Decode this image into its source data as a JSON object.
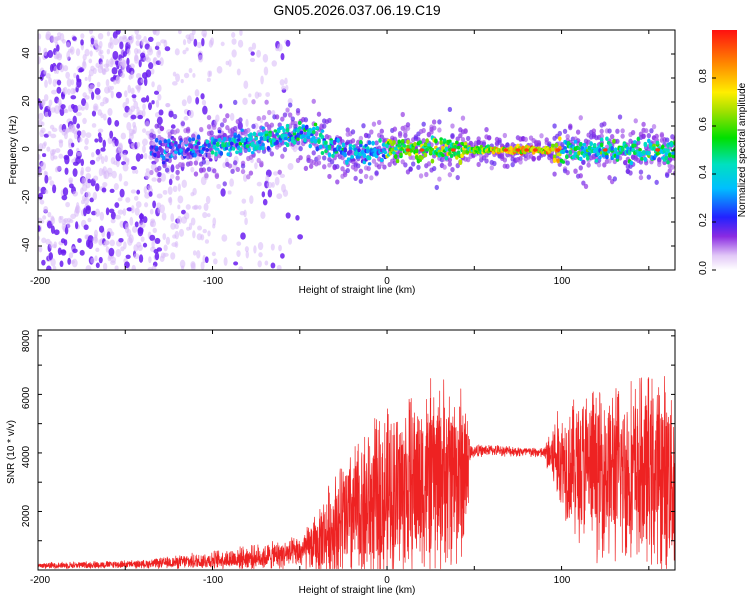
{
  "title": "GN05.2026.037.06.19.C19",
  "top_panel": {
    "xlabel": "Height of straight line (km)",
    "ylabel": "Frequency (Hz)",
    "x_ticks": [
      "-200",
      "-100",
      "0",
      "100"
    ],
    "y_ticks": [
      "40",
      "20",
      "0",
      "-20",
      "-40"
    ],
    "colorbar": {
      "label": "Normalized spectral amplitude",
      "ticks": [
        "0.0",
        "0.2",
        "0.4",
        "0.6",
        "0.8"
      ]
    }
  },
  "bottom_panel": {
    "xlabel": "Height of straight line (km)",
    "ylabel": "SNR (10 * v/v)",
    "x_ticks": [
      "-200",
      "-100",
      "0",
      "100"
    ],
    "y_ticks": [
      "8000",
      "6000",
      "4000",
      "2000"
    ]
  },
  "colors": {
    "line": "#ee2222",
    "scatter_dark": "#6a1cf0",
    "scatter_light": "#d7b8f7"
  },
  "chart_data": [
    {
      "type": "heatmap",
      "title": "GN05.2026.037.06.19.C19",
      "xlabel": "Height of straight line (km)",
      "ylabel": "Frequency (Hz)",
      "xlim": [
        -200,
        165
      ],
      "ylim": [
        -50,
        50
      ],
      "colorbar_range": [
        0,
        1
      ],
      "ridge_center_hz": [
        {
          "x": -130,
          "y": 0
        },
        {
          "x": -100,
          "y": 1
        },
        {
          "x": -80,
          "y": 3
        },
        {
          "x": -60,
          "y": 6
        },
        {
          "x": -45,
          "y": 7
        },
        {
          "x": -35,
          "y": 3
        },
        {
          "x": -20,
          "y": -2
        },
        {
          "x": 0,
          "y": 0
        },
        {
          "x": 40,
          "y": 0
        },
        {
          "x": 100,
          "y": 0
        },
        {
          "x": 165,
          "y": 0
        }
      ],
      "peak_region_km": [
        60,
        100
      ]
    },
    {
      "type": "line",
      "xlabel": "Height of straight line (km)",
      "ylabel": "SNR (10 * v/v)",
      "xlim": [
        -200,
        165
      ],
      "ylim": [
        0,
        8200
      ],
      "envelope": [
        {
          "x": -200,
          "mean": 150,
          "amp": 120
        },
        {
          "x": -140,
          "mean": 200,
          "amp": 150
        },
        {
          "x": -110,
          "mean": 300,
          "amp": 300
        },
        {
          "x": -70,
          "mean": 450,
          "amp": 500
        },
        {
          "x": -50,
          "mean": 600,
          "amp": 600
        },
        {
          "x": -40,
          "mean": 900,
          "amp": 1200
        },
        {
          "x": -30,
          "mean": 1500,
          "amp": 2200
        },
        {
          "x": -10,
          "mean": 2200,
          "amp": 3200
        },
        {
          "x": 10,
          "mean": 2800,
          "amp": 3600
        },
        {
          "x": 30,
          "mean": 3200,
          "amp": 3700
        },
        {
          "x": 45,
          "mean": 3400,
          "amp": 3500
        },
        {
          "x": 48,
          "mean": 4050,
          "amp": 250
        },
        {
          "x": 60,
          "mean": 4100,
          "amp": 200
        },
        {
          "x": 90,
          "mean": 4000,
          "amp": 200
        },
        {
          "x": 95,
          "mean": 3900,
          "amp": 1500
        },
        {
          "x": 110,
          "mean": 3500,
          "amp": 3000
        },
        {
          "x": 140,
          "mean": 3300,
          "amp": 3600
        },
        {
          "x": 165,
          "mean": 3300,
          "amp": 3800
        }
      ]
    }
  ]
}
